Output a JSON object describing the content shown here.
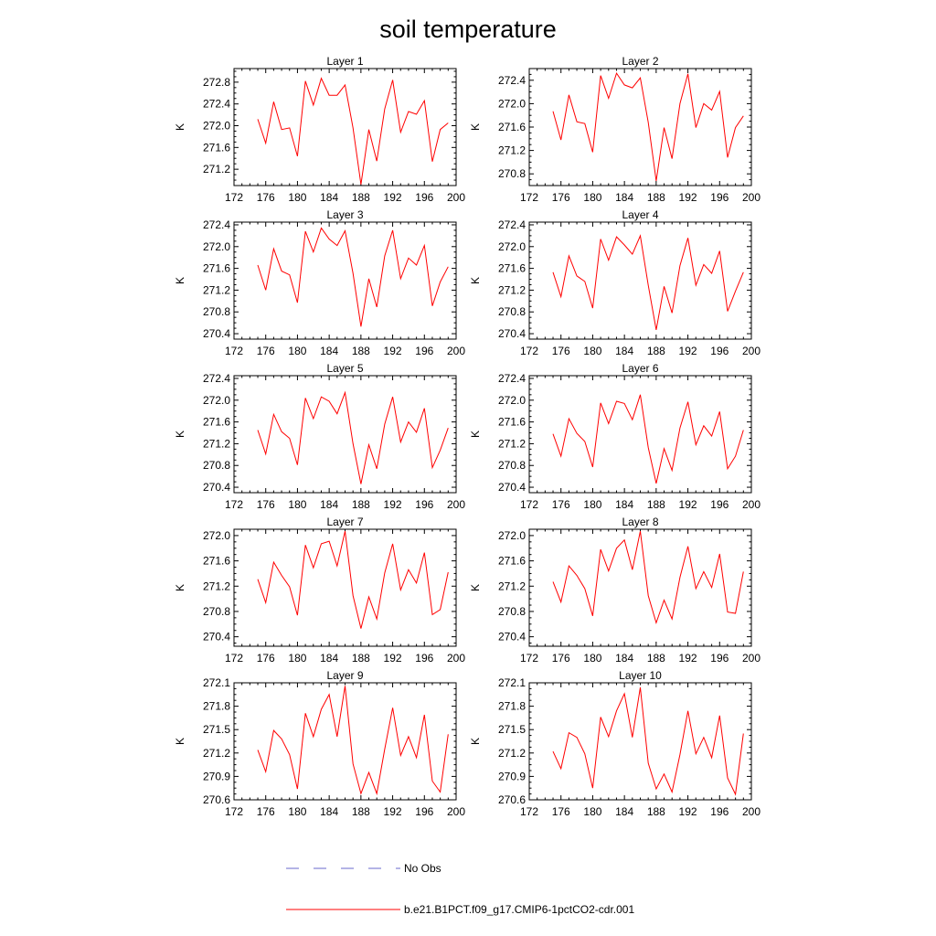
{
  "figure_title": "soil temperature",
  "chart_data": [
    {
      "type": "line",
      "title": "Layer 1",
      "xlabel": "",
      "ylabel": "K",
      "xlim": [
        172,
        200
      ],
      "ylim": [
        270.9,
        273.05
      ],
      "xticks": [
        172,
        176,
        180,
        184,
        188,
        192,
        196,
        200
      ],
      "yticks": [
        271.2,
        271.6,
        272.0,
        272.4,
        272.8
      ],
      "ytick_labels": [
        "271.2",
        "271.6",
        "272.0",
        "272.4",
        "272.8"
      ],
      "series": [
        {
          "name": "b.e21.B1PCT.f09_g17.CMIP6-1pctCO2-cdr.001",
          "color": "#ff0000",
          "x": [
            175,
            176,
            177,
            178,
            179,
            180,
            181,
            182,
            183,
            184,
            185,
            186,
            187,
            188,
            189,
            190,
            191,
            192,
            193,
            194,
            195,
            196,
            197,
            198,
            199
          ],
          "y": [
            272.12,
            271.68,
            272.44,
            271.93,
            271.96,
            271.44,
            272.82,
            272.38,
            272.87,
            272.56,
            272.56,
            272.75,
            271.96,
            270.92,
            271.93,
            271.35,
            272.31,
            272.84,
            271.88,
            272.26,
            272.21,
            272.46,
            271.34,
            271.93,
            272.05
          ]
        }
      ]
    },
    {
      "type": "line",
      "title": "Layer 2",
      "xlabel": "",
      "ylabel": "K",
      "xlim": [
        172,
        200
      ],
      "ylim": [
        270.6,
        272.6
      ],
      "xticks": [
        172,
        176,
        180,
        184,
        188,
        192,
        196,
        200
      ],
      "yticks": [
        270.8,
        271.2,
        271.6,
        272.0,
        272.4
      ],
      "ytick_labels": [
        "270.8",
        "271.2",
        "271.6",
        "272.0",
        "272.4"
      ],
      "series": [
        {
          "name": "b.e21.B1PCT.f09_g17.CMIP6-1pctCO2-cdr.001",
          "color": "#ff0000",
          "x": [
            175,
            176,
            177,
            178,
            179,
            180,
            181,
            182,
            183,
            184,
            185,
            186,
            187,
            188,
            189,
            190,
            191,
            192,
            193,
            194,
            195,
            196,
            197,
            198,
            199
          ],
          "y": [
            271.87,
            271.38,
            272.15,
            271.69,
            271.66,
            271.17,
            272.48,
            272.09,
            272.52,
            272.32,
            272.27,
            272.44,
            271.68,
            270.68,
            271.59,
            271.06,
            272.0,
            272.51,
            271.59,
            272.0,
            271.89,
            272.21,
            271.08,
            271.59,
            271.79
          ]
        }
      ]
    },
    {
      "type": "line",
      "title": "Layer 3",
      "xlabel": "",
      "ylabel": "K",
      "xlim": [
        172,
        200
      ],
      "ylim": [
        270.3,
        272.45
      ],
      "xticks": [
        172,
        176,
        180,
        184,
        188,
        192,
        196,
        200
      ],
      "yticks": [
        270.4,
        270.8,
        271.2,
        271.6,
        272.0,
        272.4
      ],
      "ytick_labels": [
        "270.4",
        "270.8",
        "271.2",
        "271.6",
        "272.0",
        "272.4"
      ],
      "series": [
        {
          "name": "b.e21.B1PCT.f09_g17.CMIP6-1pctCO2-cdr.001",
          "color": "#ff0000",
          "x": [
            175,
            176,
            177,
            178,
            179,
            180,
            181,
            182,
            183,
            184,
            185,
            186,
            187,
            188,
            189,
            190,
            191,
            192,
            193,
            194,
            195,
            196,
            197,
            198,
            199
          ],
          "y": [
            271.66,
            271.2,
            271.96,
            271.55,
            271.48,
            270.97,
            272.28,
            271.9,
            272.34,
            272.14,
            272.02,
            272.29,
            271.51,
            270.53,
            271.41,
            270.89,
            271.83,
            272.3,
            271.41,
            271.79,
            271.66,
            272.02,
            270.91,
            271.35,
            271.63
          ]
        }
      ]
    },
    {
      "type": "line",
      "title": "Layer 4",
      "xlabel": "",
      "ylabel": "K",
      "xlim": [
        172,
        200
      ],
      "ylim": [
        270.3,
        272.45
      ],
      "xticks": [
        172,
        176,
        180,
        184,
        188,
        192,
        196,
        200
      ],
      "yticks": [
        270.4,
        270.8,
        271.2,
        271.6,
        272.0,
        272.4
      ],
      "ytick_labels": [
        "270.4",
        "270.8",
        "271.2",
        "271.6",
        "272.0",
        "272.4"
      ],
      "series": [
        {
          "name": "b.e21.B1PCT.f09_g17.CMIP6-1pctCO2-cdr.001",
          "color": "#ff0000",
          "x": [
            175,
            176,
            177,
            178,
            179,
            180,
            181,
            182,
            183,
            184,
            185,
            186,
            187,
            188,
            189,
            190,
            191,
            192,
            193,
            194,
            195,
            196,
            197,
            198,
            199
          ],
          "y": [
            271.53,
            271.08,
            271.83,
            271.46,
            271.36,
            270.87,
            272.14,
            271.75,
            272.18,
            272.03,
            271.86,
            272.2,
            271.29,
            270.47,
            271.27,
            270.78,
            271.65,
            272.16,
            271.29,
            271.67,
            271.51,
            271.92,
            270.81,
            271.18,
            271.53
          ]
        }
      ]
    },
    {
      "type": "line",
      "title": "Layer 5",
      "xlabel": "",
      "ylabel": "K",
      "xlim": [
        172,
        200
      ],
      "ylim": [
        270.3,
        272.45
      ],
      "xticks": [
        172,
        176,
        180,
        184,
        188,
        192,
        196,
        200
      ],
      "yticks": [
        270.4,
        270.8,
        271.2,
        271.6,
        272.0,
        272.4
      ],
      "ytick_labels": [
        "270.4",
        "270.8",
        "271.2",
        "271.6",
        "272.0",
        "272.4"
      ],
      "series": [
        {
          "name": "b.e21.B1PCT.f09_g17.CMIP6-1pctCO2-cdr.001",
          "color": "#ff0000",
          "x": [
            175,
            176,
            177,
            178,
            179,
            180,
            181,
            182,
            183,
            184,
            185,
            186,
            187,
            188,
            189,
            190,
            191,
            192,
            193,
            194,
            195,
            196,
            197,
            198,
            199
          ],
          "y": [
            271.45,
            271.01,
            271.74,
            271.42,
            271.3,
            270.81,
            272.04,
            271.66,
            272.06,
            271.98,
            271.75,
            272.14,
            271.2,
            270.46,
            271.18,
            270.74,
            271.56,
            272.06,
            271.23,
            271.6,
            271.41,
            271.85,
            270.76,
            271.08,
            271.49
          ]
        }
      ]
    },
    {
      "type": "line",
      "title": "Layer 6",
      "xlabel": "",
      "ylabel": "K",
      "xlim": [
        172,
        200
      ],
      "ylim": [
        270.3,
        272.45
      ],
      "xticks": [
        172,
        176,
        180,
        184,
        188,
        192,
        196,
        200
      ],
      "yticks": [
        270.4,
        270.8,
        271.2,
        271.6,
        272.0,
        272.4
      ],
      "ytick_labels": [
        "270.4",
        "270.8",
        "271.2",
        "271.6",
        "272.0",
        "272.4"
      ],
      "series": [
        {
          "name": "b.e21.B1PCT.f09_g17.CMIP6-1pctCO2-cdr.001",
          "color": "#ff0000",
          "x": [
            175,
            176,
            177,
            178,
            179,
            180,
            181,
            182,
            183,
            184,
            185,
            186,
            187,
            188,
            189,
            190,
            191,
            192,
            193,
            194,
            195,
            196,
            197,
            198,
            199
          ],
          "y": [
            271.38,
            270.97,
            271.66,
            271.39,
            271.24,
            270.77,
            271.95,
            271.57,
            271.98,
            271.94,
            271.64,
            272.1,
            271.13,
            270.47,
            271.11,
            270.71,
            271.49,
            271.97,
            271.18,
            271.53,
            271.34,
            271.79,
            270.74,
            270.97,
            271.45
          ]
        }
      ]
    },
    {
      "type": "line",
      "title": "Layer 7",
      "xlabel": "",
      "ylabel": "K",
      "xlim": [
        172,
        200
      ],
      "ylim": [
        270.25,
        272.1
      ],
      "xticks": [
        172,
        176,
        180,
        184,
        188,
        192,
        196,
        200
      ],
      "yticks": [
        270.4,
        270.8,
        271.2,
        271.6,
        272.0
      ],
      "ytick_labels": [
        "270.4",
        "270.8",
        "271.2",
        "271.6",
        "272.0"
      ],
      "series": [
        {
          "name": "b.e21.B1PCT.f09_g17.CMIP6-1pctCO2-cdr.001",
          "color": "#ff0000",
          "x": [
            175,
            176,
            177,
            178,
            179,
            180,
            181,
            182,
            183,
            184,
            185,
            186,
            187,
            188,
            189,
            190,
            191,
            192,
            193,
            194,
            195,
            196,
            197,
            198,
            199
          ],
          "y": [
            271.31,
            270.94,
            271.58,
            271.37,
            271.19,
            270.74,
            271.85,
            271.49,
            271.87,
            271.91,
            271.52,
            272.07,
            271.05,
            270.53,
            271.03,
            270.68,
            271.41,
            271.87,
            271.14,
            271.46,
            271.25,
            271.73,
            270.75,
            270.83,
            271.42
          ]
        }
      ]
    },
    {
      "type": "line",
      "title": "Layer 8",
      "xlabel": "",
      "ylabel": "K",
      "xlim": [
        172,
        200
      ],
      "ylim": [
        270.25,
        272.1
      ],
      "xticks": [
        172,
        176,
        180,
        184,
        188,
        192,
        196,
        200
      ],
      "yticks": [
        270.4,
        270.8,
        271.2,
        271.6,
        272.0
      ],
      "ytick_labels": [
        "270.4",
        "270.8",
        "271.2",
        "271.6",
        "272.0"
      ],
      "series": [
        {
          "name": "b.e21.B1PCT.f09_g17.CMIP6-1pctCO2-cdr.001",
          "color": "#ff0000",
          "x": [
            175,
            176,
            177,
            178,
            179,
            180,
            181,
            182,
            183,
            184,
            185,
            186,
            187,
            188,
            189,
            190,
            191,
            192,
            193,
            194,
            195,
            196,
            197,
            198,
            199
          ],
          "y": [
            271.27,
            270.95,
            271.52,
            271.37,
            271.16,
            270.73,
            271.78,
            271.44,
            271.8,
            271.93,
            271.46,
            272.07,
            271.05,
            270.62,
            270.98,
            270.68,
            271.34,
            271.83,
            271.16,
            271.43,
            271.18,
            271.71,
            270.79,
            270.77,
            271.43
          ]
        }
      ]
    },
    {
      "type": "line",
      "title": "Layer 9",
      "xlabel": "",
      "ylabel": "K",
      "xlim": [
        172,
        200
      ],
      "ylim": [
        270.6,
        272.1
      ],
      "xticks": [
        172,
        176,
        180,
        184,
        188,
        192,
        196,
        200
      ],
      "yticks": [
        270.6,
        270.9,
        271.2,
        271.5,
        271.8,
        272.1
      ],
      "ytick_labels": [
        "270.6",
        "270.9",
        "271.2",
        "271.5",
        "271.8",
        "272.1"
      ],
      "series": [
        {
          "name": "b.e21.B1PCT.f09_g17.CMIP6-1pctCO2-cdr.001",
          "color": "#ff0000",
          "x": [
            175,
            176,
            177,
            178,
            179,
            180,
            181,
            182,
            183,
            184,
            185,
            186,
            187,
            188,
            189,
            190,
            191,
            192,
            193,
            194,
            195,
            196,
            197,
            198,
            199
          ],
          "y": [
            271.24,
            270.96,
            271.49,
            271.38,
            271.18,
            270.74,
            271.71,
            271.41,
            271.76,
            271.95,
            271.41,
            272.06,
            271.06,
            270.68,
            270.95,
            270.68,
            271.25,
            271.78,
            271.17,
            271.41,
            271.14,
            271.69,
            270.84,
            270.7,
            271.44
          ]
        }
      ]
    },
    {
      "type": "line",
      "title": "Layer 10",
      "xlabel": "",
      "ylabel": "K",
      "xlim": [
        172,
        200
      ],
      "ylim": [
        270.6,
        272.1
      ],
      "xticks": [
        172,
        176,
        180,
        184,
        188,
        192,
        196,
        200
      ],
      "yticks": [
        270.6,
        270.9,
        271.2,
        271.5,
        271.8,
        272.1
      ],
      "ytick_labels": [
        "270.6",
        "270.9",
        "271.2",
        "271.5",
        "271.8",
        "272.1"
      ],
      "series": [
        {
          "name": "b.e21.B1PCT.f09_g17.CMIP6-1pctCO2-cdr.001",
          "color": "#ff0000",
          "x": [
            175,
            176,
            177,
            178,
            179,
            180,
            181,
            182,
            183,
            184,
            185,
            186,
            187,
            188,
            189,
            190,
            191,
            192,
            193,
            194,
            195,
            196,
            197,
            198,
            199
          ],
          "y": [
            271.22,
            271.0,
            271.46,
            271.4,
            271.19,
            270.75,
            271.66,
            271.41,
            271.74,
            271.96,
            271.4,
            272.04,
            271.07,
            270.74,
            270.93,
            270.7,
            271.18,
            271.74,
            271.19,
            271.4,
            271.14,
            271.68,
            270.88,
            270.67,
            271.45
          ]
        }
      ]
    }
  ],
  "legend": [
    {
      "label": "No Obs",
      "color": "#6a6acd",
      "style": "dashed"
    },
    {
      "label": "b.e21.B1PCT.f09_g17.CMIP6-1pctCO2-cdr.001",
      "color": "#ff0000",
      "style": "solid"
    }
  ]
}
